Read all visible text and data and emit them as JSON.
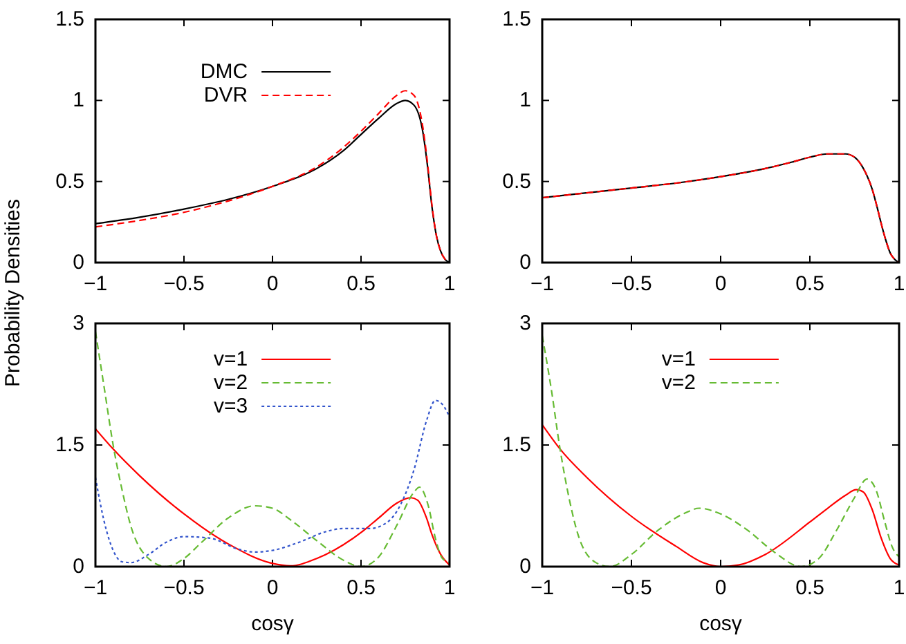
{
  "chart_data": [
    {
      "type": "line",
      "ylabel": "Probability Densities",
      "xlim": [
        -1,
        1
      ],
      "ylim": [
        0,
        1.5
      ],
      "xticks": [
        -1,
        -0.5,
        0,
        0.5,
        1
      ],
      "yticks": [
        0,
        0.5,
        1,
        1.5
      ],
      "legend": "top",
      "grid": false,
      "x": [
        -1,
        -0.75,
        -0.5,
        -0.25,
        0,
        0.25,
        0.4,
        0.5,
        0.6,
        0.7,
        0.75,
        0.8,
        0.85,
        0.875,
        0.9,
        0.925,
        0.95,
        0.975,
        1
      ],
      "series": [
        {
          "name": "DMC",
          "color": "#000000",
          "line_style": "solid",
          "values": [
            0.24,
            0.28,
            0.33,
            0.39,
            0.47,
            0.58,
            0.69,
            0.79,
            0.89,
            0.98,
            1.0,
            0.97,
            0.8,
            0.6,
            0.35,
            0.17,
            0.07,
            0.02,
            0
          ]
        },
        {
          "name": "DVR",
          "color": "#ff0000",
          "line_style": "dashed",
          "values": [
            0.22,
            0.26,
            0.31,
            0.38,
            0.47,
            0.59,
            0.71,
            0.81,
            0.92,
            1.03,
            1.06,
            1.03,
            0.83,
            0.62,
            0.36,
            0.17,
            0.07,
            0.02,
            0
          ]
        }
      ]
    },
    {
      "type": "line",
      "xlim": [
        -1,
        1
      ],
      "ylim": [
        0,
        1.5
      ],
      "xticks": [
        -1,
        -0.5,
        0,
        0.5,
        1
      ],
      "yticks": [
        0,
        0.5,
        1,
        1.5
      ],
      "grid": false,
      "x": [
        -1,
        -0.75,
        -0.5,
        -0.25,
        0,
        0.25,
        0.4,
        0.5,
        0.6,
        0.7,
        0.75,
        0.8,
        0.85,
        0.875,
        0.9,
        0.925,
        0.95,
        0.975,
        1
      ],
      "series": [
        {
          "color": "#000000",
          "line_style": "solid",
          "values": [
            0.4,
            0.43,
            0.46,
            0.49,
            0.53,
            0.58,
            0.62,
            0.65,
            0.67,
            0.67,
            0.65,
            0.58,
            0.45,
            0.35,
            0.24,
            0.14,
            0.06,
            0.02,
            0
          ]
        },
        {
          "color": "#ff0000",
          "line_style": "dashed",
          "values": [
            0.4,
            0.43,
            0.46,
            0.49,
            0.53,
            0.58,
            0.62,
            0.65,
            0.67,
            0.67,
            0.65,
            0.58,
            0.45,
            0.35,
            0.24,
            0.14,
            0.06,
            0.02,
            0
          ]
        }
      ]
    },
    {
      "type": "line",
      "xlabel": "cosγ",
      "xlim": [
        -1,
        1
      ],
      "ylim": [
        0,
        3
      ],
      "xticks": [
        -1,
        -0.5,
        0,
        0.5,
        1
      ],
      "yticks": [
        0,
        1.5,
        3
      ],
      "legend": "top",
      "grid": false,
      "series": [
        {
          "name": "v=1",
          "color": "#ff0000",
          "line_style": "solid",
          "x": [
            -1,
            -0.9,
            -0.75,
            -0.5,
            -0.25,
            0,
            0.1,
            0.25,
            0.5,
            0.6,
            0.7,
            0.78,
            0.82,
            0.87,
            0.9,
            0.95,
            1
          ],
          "values": [
            1.7,
            1.45,
            1.12,
            0.65,
            0.28,
            0.04,
            0.01,
            0.1,
            0.42,
            0.6,
            0.78,
            0.85,
            0.82,
            0.6,
            0.4,
            0.15,
            0.02
          ]
        },
        {
          "name": "v=2",
          "color": "#66bb33",
          "line_style": "dashed",
          "x": [
            -1,
            -0.95,
            -0.9,
            -0.85,
            -0.8,
            -0.7,
            -0.6,
            -0.5,
            -0.4,
            -0.25,
            -0.1,
            0,
            0.1,
            0.25,
            0.4,
            0.5,
            0.6,
            0.7,
            0.8,
            0.83,
            0.88,
            0.92,
            0.96,
            1
          ],
          "values": [
            2.9,
            2.2,
            1.5,
            0.95,
            0.5,
            0.1,
            0.0,
            0.1,
            0.3,
            0.6,
            0.75,
            0.72,
            0.58,
            0.32,
            0.08,
            0.0,
            0.12,
            0.5,
            0.92,
            0.98,
            0.75,
            0.35,
            0.1,
            0.05
          ]
        },
        {
          "name": "v=3",
          "color": "#3355cc",
          "line_style": "dotted",
          "x": [
            -1,
            -0.95,
            -0.9,
            -0.85,
            -0.8,
            -0.7,
            -0.6,
            -0.5,
            -0.35,
            -0.2,
            -0.1,
            0,
            0.15,
            0.3,
            0.4,
            0.55,
            0.65,
            0.72,
            0.8,
            0.87,
            0.92,
            0.96,
            1
          ],
          "values": [
            1.1,
            0.55,
            0.2,
            0.06,
            0.05,
            0.15,
            0.3,
            0.37,
            0.35,
            0.22,
            0.18,
            0.2,
            0.3,
            0.43,
            0.47,
            0.47,
            0.55,
            0.75,
            1.2,
            1.8,
            2.05,
            2.0,
            1.85
          ]
        }
      ]
    },
    {
      "type": "line",
      "xlabel": "cosγ",
      "xlim": [
        -1,
        1
      ],
      "ylim": [
        0,
        3
      ],
      "xticks": [
        -1,
        -0.5,
        0,
        0.5,
        1
      ],
      "yticks": [
        0,
        1.5,
        3
      ],
      "legend": "top",
      "grid": false,
      "series": [
        {
          "name": "v=1",
          "color": "#ff0000",
          "line_style": "solid",
          "x": [
            -1,
            -0.9,
            -0.75,
            -0.5,
            -0.25,
            -0.1,
            0,
            0.1,
            0.25,
            0.5,
            0.6,
            0.7,
            0.76,
            0.8,
            0.85,
            0.9,
            0.95,
            1
          ],
          "values": [
            1.75,
            1.45,
            1.1,
            0.62,
            0.25,
            0.05,
            0.0,
            0.02,
            0.15,
            0.55,
            0.72,
            0.88,
            0.95,
            0.92,
            0.7,
            0.35,
            0.1,
            0.02
          ]
        },
        {
          "name": "v=2",
          "color": "#66bb33",
          "line_style": "dashed",
          "x": [
            -1,
            -0.95,
            -0.9,
            -0.85,
            -0.8,
            -0.7,
            -0.62,
            -0.5,
            -0.35,
            -0.2,
            -0.12,
            0,
            0.15,
            0.3,
            0.45,
            0.55,
            0.65,
            0.75,
            0.82,
            0.87,
            0.92,
            0.96,
            1
          ],
          "values": [
            2.85,
            2.2,
            1.45,
            0.85,
            0.4,
            0.05,
            0.0,
            0.15,
            0.45,
            0.66,
            0.72,
            0.65,
            0.45,
            0.18,
            0.0,
            0.1,
            0.45,
            0.85,
            1.08,
            0.95,
            0.55,
            0.25,
            0.12
          ]
        }
      ]
    }
  ]
}
